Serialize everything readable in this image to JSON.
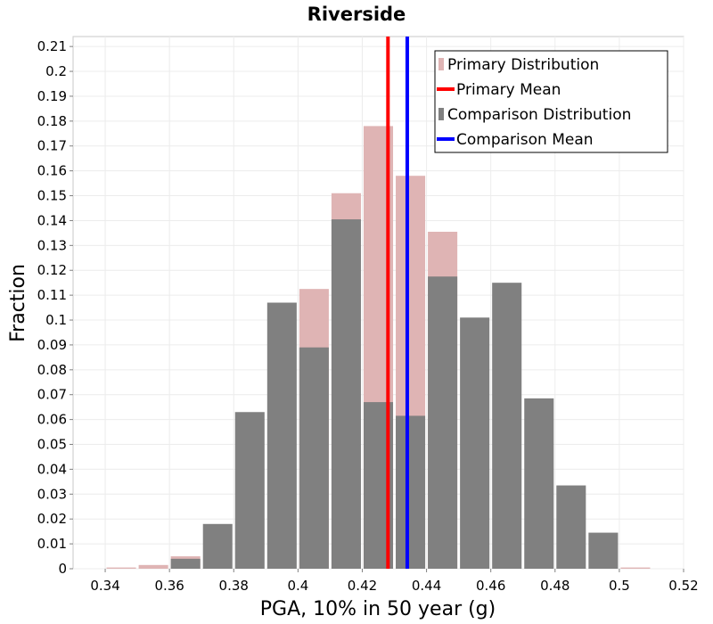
{
  "chart_data": {
    "type": "bar",
    "title": "Riverside",
    "xlabel": "PGA, 10% in 50 year (g)",
    "ylabel": "Fraction",
    "xlim": [
      0.33,
      0.52
    ],
    "ylim": [
      0,
      0.214
    ],
    "xticks": [
      "0.34",
      "0.36",
      "0.38",
      "0.4",
      "0.42",
      "0.44",
      "0.46",
      "0.48",
      "0.5",
      "0.52"
    ],
    "yticks": [
      "0",
      "0.01",
      "0.02",
      "0.03",
      "0.04",
      "0.05",
      "0.06",
      "0.07",
      "0.08",
      "0.09",
      "0.1",
      "0.11",
      "0.12",
      "0.13",
      "0.14",
      "0.15",
      "0.16",
      "0.17",
      "0.18",
      "0.19",
      "0.2",
      "0.21"
    ],
    "bin_width": 0.01,
    "bin_centers": [
      0.345,
      0.355,
      0.365,
      0.375,
      0.385,
      0.395,
      0.405,
      0.415,
      0.425,
      0.435,
      0.445,
      0.455,
      0.465,
      0.475,
      0.485,
      0.495,
      0.505
    ],
    "series": [
      {
        "name": "Primary Distribution",
        "color": "#dfb4b4",
        "values": [
          0.0005,
          0.0015,
          0.005,
          0.0,
          0.0,
          0.0,
          0.1125,
          0.151,
          0.178,
          0.158,
          0.1355,
          0.0,
          0.0,
          0.0,
          0.0,
          0.0,
          0.0005
        ]
      },
      {
        "name": "Comparison Distribution",
        "color": "#808080",
        "values": [
          0.0,
          0.0,
          0.004,
          0.018,
          0.063,
          0.107,
          0.089,
          0.1405,
          0.067,
          0.0615,
          0.1175,
          0.101,
          0.115,
          0.0685,
          0.0335,
          0.0145,
          0.0
        ]
      }
    ],
    "means": [
      {
        "name": "Primary Mean",
        "value": 0.428,
        "color": "#ff0000"
      },
      {
        "name": "Comparison Mean",
        "value": 0.434,
        "color": "#0000ff"
      }
    ],
    "legend": [
      {
        "label": "Primary Distribution",
        "kind": "box",
        "color": "#dfb4b4"
      },
      {
        "label": "Primary Mean",
        "kind": "line",
        "color": "#ff0000"
      },
      {
        "label": "Comparison Distribution",
        "kind": "box",
        "color": "#808080"
      },
      {
        "label": "Comparison Mean",
        "kind": "line",
        "color": "#0000ff"
      }
    ],
    "legend_position": "top-right",
    "grid": true
  }
}
